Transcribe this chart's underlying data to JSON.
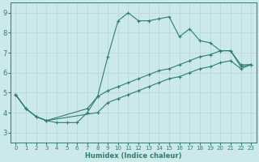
{
  "title": "",
  "xlabel": "Humidex (Indice chaleur)",
  "ylabel": "",
  "bg_color": "#cce9e9",
  "line_color": "#2e7d72",
  "grid_color": "#b8d8d8",
  "xlim": [
    -0.5,
    23.5
  ],
  "ylim": [
    2.5,
    9.5
  ],
  "xticks": [
    0,
    1,
    2,
    3,
    4,
    5,
    6,
    7,
    8,
    9,
    10,
    11,
    12,
    13,
    14,
    15,
    16,
    17,
    18,
    19,
    20,
    21,
    22,
    23
  ],
  "yticks": [
    3,
    4,
    5,
    6,
    7,
    8,
    9
  ],
  "line1": {
    "x": [
      0,
      1,
      2,
      3,
      4,
      5,
      6,
      7,
      8,
      9,
      10,
      11,
      12,
      13,
      14,
      15,
      16,
      17,
      18,
      19,
      20,
      21,
      22,
      23
    ],
    "y": [
      4.9,
      4.2,
      3.8,
      3.6,
      3.5,
      3.5,
      3.5,
      4.0,
      4.8,
      6.8,
      8.6,
      9.0,
      8.6,
      8.6,
      8.7,
      8.8,
      7.8,
      8.2,
      7.6,
      7.5,
      7.1,
      7.1,
      6.4,
      6.4
    ]
  },
  "line2": {
    "x": [
      0,
      1,
      2,
      3,
      7,
      8,
      9,
      10,
      11,
      12,
      13,
      14,
      15,
      16,
      17,
      18,
      19,
      20,
      21,
      22,
      23
    ],
    "y": [
      4.9,
      4.2,
      3.8,
      3.6,
      4.2,
      4.8,
      5.1,
      5.3,
      5.5,
      5.7,
      5.9,
      6.1,
      6.2,
      6.4,
      6.6,
      6.8,
      6.9,
      7.1,
      7.1,
      6.3,
      6.4
    ]
  },
  "line3": {
    "x": [
      0,
      1,
      2,
      3,
      8,
      9,
      10,
      11,
      12,
      13,
      14,
      15,
      16,
      17,
      18,
      19,
      20,
      21,
      22,
      23
    ],
    "y": [
      4.9,
      4.2,
      3.8,
      3.6,
      4.0,
      4.5,
      4.7,
      4.9,
      5.1,
      5.3,
      5.5,
      5.7,
      5.8,
      6.0,
      6.2,
      6.3,
      6.5,
      6.6,
      6.2,
      6.4
    ]
  }
}
